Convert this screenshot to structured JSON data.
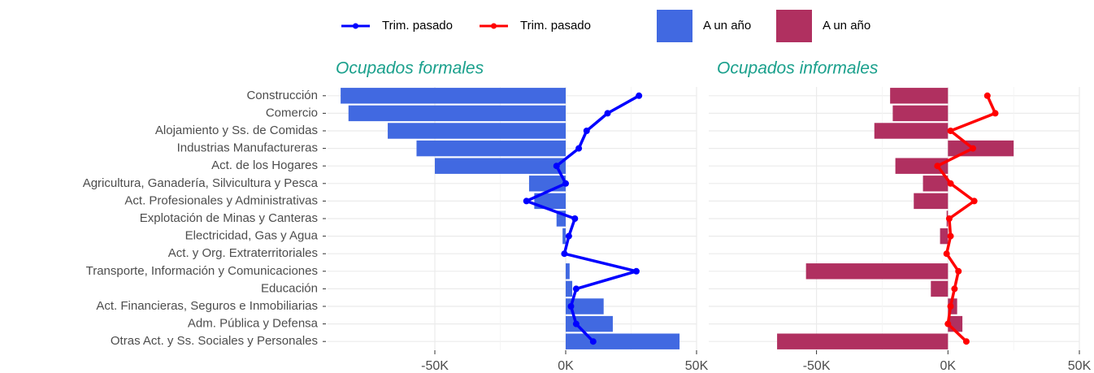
{
  "chart_data": [
    {
      "type": "bar",
      "title": "Ocupados formales",
      "categories": [
        "Construcción",
        "Comercio",
        "Alojamiento y Ss. de Comidas",
        "Industrias Manufactureras",
        "Act. de los Hogares",
        "Agricultura, Ganadería, Silvicultura y Pesca",
        "Act. Profesionales y Administrativas",
        "Explotación de Minas y Canteras",
        "Electricidad, Gas y Agua",
        "Act. y Org. Extraterritoriales",
        "Transporte, Información y Comunicaciones",
        "Educación",
        "Act. Financieras, Seguros e Inmobiliarias",
        "Adm. Pública y Defensa",
        "Otras Act. y Ss. Sociales y Personales"
      ],
      "series": [
        {
          "name": "Trim. pasado",
          "type": "line",
          "color": "#0000ff",
          "values": [
            28000,
            16000,
            8000,
            5000,
            -3500,
            0,
            -15000,
            3500,
            1200,
            -500,
            27000,
            4000,
            2000,
            4000,
            10500
          ]
        },
        {
          "name": "A un año",
          "type": "bar",
          "color": "#4169e1",
          "values": [
            -86000,
            -83000,
            -68000,
            -57000,
            -50000,
            -14000,
            -12000,
            -3500,
            -1200,
            0,
            1500,
            2500,
            14500,
            18000,
            43500
          ]
        }
      ],
      "xlim": [
        -91000,
        50000
      ],
      "xticks": [
        {
          "value": -50000,
          "label": "-50K"
        },
        {
          "value": 0,
          "label": "0K"
        },
        {
          "value": 50000,
          "label": "50K"
        }
      ],
      "grid": true
    },
    {
      "type": "bar",
      "title": "Ocupados informales",
      "series": [
        {
          "name": "Trim. pasado",
          "type": "line",
          "color": "#ff0000",
          "values": [
            15000,
            18000,
            1000,
            9500,
            -4000,
            1000,
            10000,
            500,
            1000,
            -500,
            4000,
            2500,
            1000,
            0,
            7000
          ]
        },
        {
          "name": "A un año",
          "type": "bar",
          "color": "#b03060",
          "values": [
            -22000,
            -21000,
            -28000,
            25000,
            -20000,
            -9500,
            -13000,
            -500,
            -3000,
            0,
            -54000,
            -6500,
            3500,
            5500,
            -65000
          ]
        }
      ],
      "xlim": [
        -91000,
        50000
      ],
      "xticks": [
        {
          "value": -50000,
          "label": "-50K"
        },
        {
          "value": 0,
          "label": "0K"
        },
        {
          "value": 50000,
          "label": "50K"
        }
      ],
      "grid": true
    }
  ]
}
